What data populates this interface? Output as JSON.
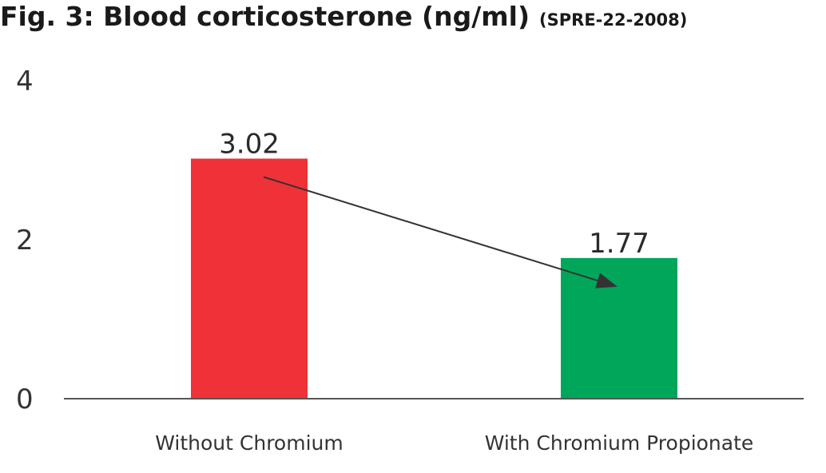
{
  "chart_data": {
    "type": "bar",
    "title": "Fig. 3: Blood corticosterone (ng/ml)",
    "subtitle": "(SPRE-22-2008)",
    "categories": [
      "Without Chromium",
      "With Chromium Propionate"
    ],
    "values": [
      3.02,
      1.77
    ],
    "data_labels": [
      "3.02",
      "1.77"
    ],
    "colors": [
      "#ee3237",
      "#00a75a"
    ],
    "ylim": [
      0,
      4
    ],
    "yticks": [
      0,
      2,
      4
    ],
    "ytick_labels": [
      "0",
      "2",
      "4"
    ],
    "grid": false,
    "legend": "none",
    "annotation": {
      "type": "arrow",
      "from_category": 0,
      "to_category": 1,
      "color": "#333333"
    }
  }
}
